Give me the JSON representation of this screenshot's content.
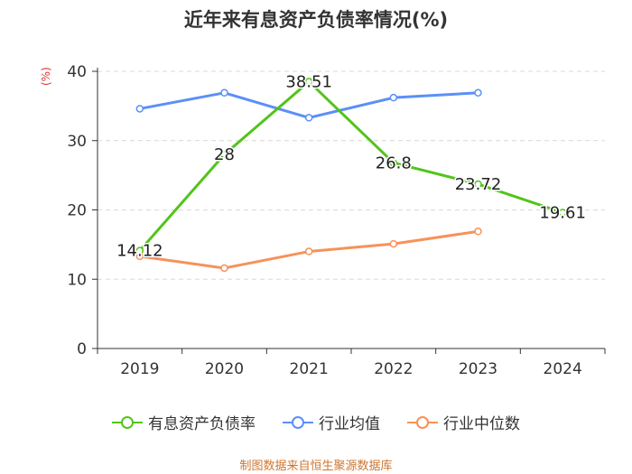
{
  "chart_data": {
    "type": "line",
    "title": "近年来有息资产负债率情况(%)",
    "ylabel": "(%)",
    "xlabel": "",
    "categories": [
      "2019",
      "2020",
      "2021",
      "2022",
      "2023",
      "2024"
    ],
    "ylim": [
      0,
      40
    ],
    "yticks": [
      0,
      10,
      20,
      30,
      40
    ],
    "grid": true,
    "legend_position": "bottom",
    "series": [
      {
        "name": "有息资产负债率",
        "color": "#52c41a",
        "values": [
          14.12,
          28,
          38.51,
          26.8,
          23.72,
          19.61
        ],
        "labels": [
          "14.12",
          "28",
          "38.51",
          "26.8",
          "23.72",
          "19.61"
        ]
      },
      {
        "name": "行业均值",
        "color": "#5b8ff9",
        "values": [
          34.6,
          36.9,
          33.3,
          36.2,
          36.9,
          null
        ]
      },
      {
        "name": "行业中位数",
        "color": "#f6925b",
        "values": [
          13.3,
          11.6,
          14.0,
          15.1,
          16.9,
          null
        ]
      }
    ]
  },
  "source": "制图数据来自恒生聚源数据库"
}
